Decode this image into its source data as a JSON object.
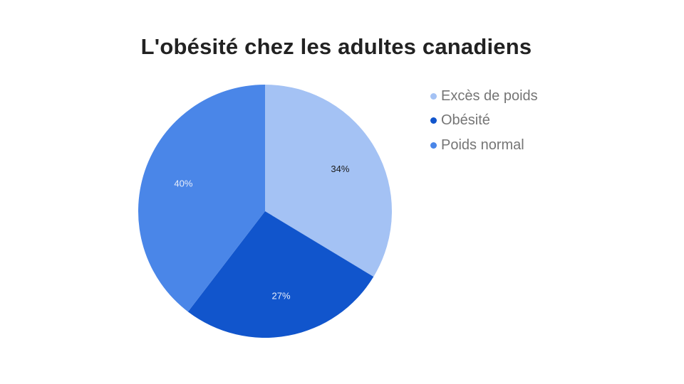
{
  "chart_data": {
    "type": "pie",
    "title": "L'obésité chez les adultes canadiens",
    "slices": [
      {
        "label": "Excès de poids",
        "value": 34,
        "display": "34%",
        "color": "#a4c2f4",
        "label_color": "#1a1a1a"
      },
      {
        "label": "Obésité",
        "value": 27,
        "display": "27%",
        "color": "#1155cc",
        "label_color": "#e8eefb"
      },
      {
        "label": "Poids normal",
        "value": 40,
        "display": "40%",
        "color": "#4a86e8",
        "label_color": "#e8eefb"
      }
    ],
    "legend_position": "top-right",
    "start": "12 o'clock, clockwise"
  }
}
